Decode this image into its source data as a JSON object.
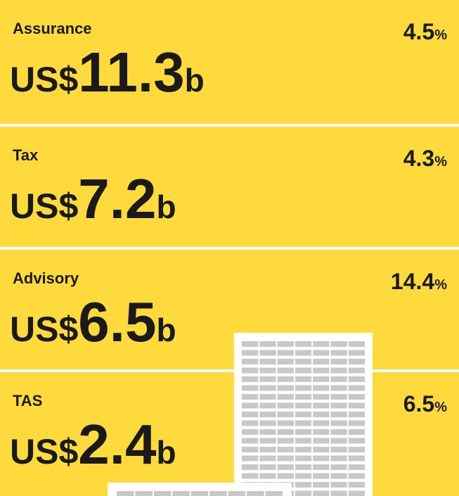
{
  "currency": "US$",
  "unit": "b",
  "percent": "%",
  "panels": [
    {
      "name": "Assurance",
      "amount": "11.3",
      "growth": "4.5"
    },
    {
      "name": "Tax",
      "amount": "7.2",
      "growth": "4.3"
    },
    {
      "name": "Advisory",
      "amount": "6.5",
      "growth": "14.4"
    },
    {
      "name": "TAS",
      "amount": "2.4",
      "growth": "6.5"
    }
  ]
}
